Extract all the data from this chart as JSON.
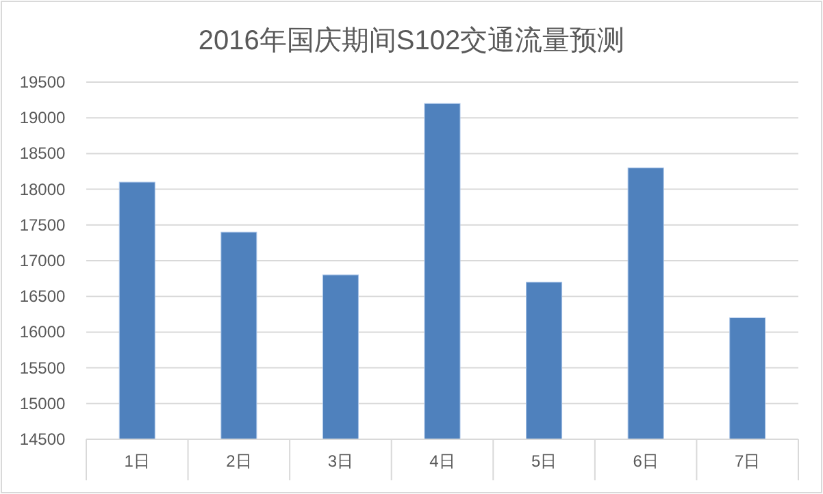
{
  "chart_data": {
    "type": "bar",
    "title": "2016年国庆期间S102交通流量预测",
    "categories": [
      "1日",
      "2日",
      "3日",
      "4日",
      "5日",
      "6日",
      "7日"
    ],
    "values": [
      18100,
      17400,
      16800,
      19200,
      16700,
      18300,
      16200
    ],
    "color": "#4f81bd",
    "ylim": [
      14500,
      19500
    ],
    "yticks": [
      14500,
      15000,
      15500,
      16000,
      16500,
      17000,
      17500,
      18000,
      18500,
      19000,
      19500
    ],
    "grid": "y"
  }
}
